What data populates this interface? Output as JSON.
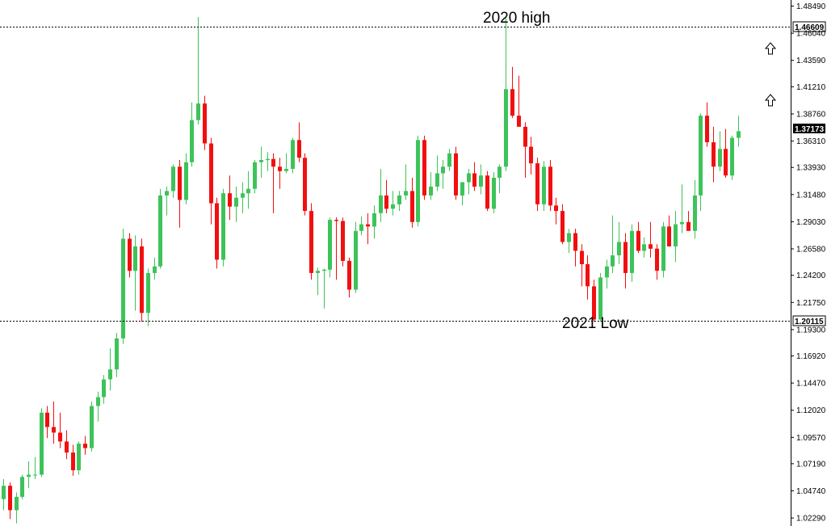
{
  "chart_data": {
    "type": "candlestick",
    "title": "",
    "xlabel": "",
    "ylabel": "",
    "ylim": [
      1.0157,
      1.4904
    ],
    "grid": false,
    "legend": "none",
    "colors": {
      "up": "#3dc35a",
      "down": "#f20f0f",
      "axis": "#000000",
      "level_line": "#000000"
    },
    "y_ticks": [
      "1.48490",
      "1.46040",
      "1.43590",
      "1.41210",
      "1.38760",
      "1.36310",
      "1.33930",
      "1.31480",
      "1.29030",
      "1.26580",
      "1.24200",
      "1.21750",
      "1.19300",
      "1.16920",
      "1.14470",
      "1.12020",
      "1.09570",
      "1.07190",
      "1.04740",
      "1.02290"
    ],
    "y_tick_values": [
      1.4849,
      1.4604,
      1.4359,
      1.4121,
      1.3876,
      1.3631,
      1.3393,
      1.3148,
      1.2903,
      1.2658,
      1.242,
      1.2175,
      1.193,
      1.1692,
      1.1447,
      1.1202,
      1.0957,
      1.0719,
      1.0474,
      1.0229
    ],
    "levels": [
      {
        "value": 1.46609,
        "label": "1.46609",
        "annotation": "2020 high"
      },
      {
        "value": 1.20115,
        "label": "1.20115",
        "annotation": "2021 Low"
      }
    ],
    "current_price": {
      "value": 1.37173,
      "label": "1.37173"
    },
    "arrow_icons": [
      "up-arrow-icon",
      "up-arrow-icon"
    ],
    "candles": [
      [
        1.04,
        1.058,
        1.03,
        1.052
      ],
      [
        1.052,
        1.055,
        1.022,
        1.03
      ],
      [
        1.03,
        1.046,
        1.018,
        1.042
      ],
      [
        1.042,
        1.062,
        1.04,
        1.06
      ],
      [
        1.06,
        1.074,
        1.05,
        1.062
      ],
      [
        1.062,
        1.078,
        1.058,
        1.062
      ],
      [
        1.062,
        1.122,
        1.06,
        1.118
      ],
      [
        1.118,
        1.124,
        1.095,
        1.105
      ],
      [
        1.105,
        1.128,
        1.09,
        1.1
      ],
      [
        1.1,
        1.118,
        1.086,
        1.092
      ],
      [
        1.092,
        1.102,
        1.076,
        1.082
      ],
      [
        1.082,
        1.089,
        1.061,
        1.066
      ],
      [
        1.066,
        1.092,
        1.062,
        1.09
      ],
      [
        1.09,
        1.097,
        1.08,
        1.086
      ],
      [
        1.086,
        1.128,
        1.083,
        1.124
      ],
      [
        1.124,
        1.137,
        1.11,
        1.132
      ],
      [
        1.132,
        1.152,
        1.126,
        1.148
      ],
      [
        1.148,
        1.176,
        1.138,
        1.157
      ],
      [
        1.157,
        1.19,
        1.15,
        1.185
      ],
      [
        1.185,
        1.284,
        1.18,
        1.275
      ],
      [
        1.275,
        1.28,
        1.24,
        1.246
      ],
      [
        1.246,
        1.278,
        1.21,
        1.268
      ],
      [
        1.268,
        1.275,
        1.2,
        1.208
      ],
      [
        1.208,
        1.248,
        1.196,
        1.244
      ],
      [
        1.244,
        1.258,
        1.238,
        1.25
      ],
      [
        1.25,
        1.32,
        1.248,
        1.314
      ],
      [
        1.314,
        1.322,
        1.296,
        1.318
      ],
      [
        1.318,
        1.342,
        1.312,
        1.34
      ],
      [
        1.34,
        1.346,
        1.285,
        1.31
      ],
      [
        1.31,
        1.352,
        1.306,
        1.344
      ],
      [
        1.344,
        1.398,
        1.34,
        1.382
      ],
      [
        1.382,
        1.475,
        1.378,
        1.397
      ],
      [
        1.397,
        1.404,
        1.355,
        1.361
      ],
      [
        1.361,
        1.366,
        1.288,
        1.307
      ],
      [
        1.307,
        1.312,
        1.248,
        1.256
      ],
      [
        1.256,
        1.32,
        1.25,
        1.316
      ],
      [
        1.316,
        1.332,
        1.292,
        1.304
      ],
      [
        1.304,
        1.322,
        1.29,
        1.312
      ],
      [
        1.312,
        1.326,
        1.298,
        1.316
      ],
      [
        1.316,
        1.336,
        1.302,
        1.32
      ],
      [
        1.32,
        1.346,
        1.316,
        1.344
      ],
      [
        1.344,
        1.358,
        1.33,
        1.346
      ],
      [
        1.346,
        1.353,
        1.336,
        1.347
      ],
      [
        1.347,
        1.352,
        1.298,
        1.34
      ],
      [
        1.34,
        1.348,
        1.32,
        1.336
      ],
      [
        1.336,
        1.352,
        1.334,
        1.338
      ],
      [
        1.338,
        1.366,
        1.334,
        1.364
      ],
      [
        1.364,
        1.38,
        1.344,
        1.348
      ],
      [
        1.348,
        1.352,
        1.296,
        1.3
      ],
      [
        1.3,
        1.307,
        1.238,
        1.244
      ],
      [
        1.244,
        1.249,
        1.224,
        1.246
      ],
      [
        1.246,
        1.248,
        1.212,
        1.247
      ],
      [
        1.247,
        1.294,
        1.24,
        1.292
      ],
      [
        1.292,
        1.294,
        1.238,
        1.291
      ],
      [
        1.291,
        1.294,
        1.25,
        1.255
      ],
      [
        1.255,
        1.258,
        1.222,
        1.229
      ],
      [
        1.229,
        1.29,
        1.226,
        1.282
      ],
      [
        1.282,
        1.295,
        1.278,
        1.288
      ],
      [
        1.288,
        1.298,
        1.27,
        1.286
      ],
      [
        1.286,
        1.305,
        1.275,
        1.298
      ],
      [
        1.298,
        1.338,
        1.29,
        1.314
      ],
      [
        1.314,
        1.328,
        1.298,
        1.302
      ],
      [
        1.302,
        1.318,
        1.296,
        1.306
      ],
      [
        1.306,
        1.318,
        1.3,
        1.314
      ],
      [
        1.314,
        1.342,
        1.31,
        1.318
      ],
      [
        1.318,
        1.33,
        1.285,
        1.29
      ],
      [
        1.29,
        1.368,
        1.286,
        1.364
      ],
      [
        1.364,
        1.368,
        1.31,
        1.314
      ],
      [
        1.314,
        1.335,
        1.31,
        1.322
      ],
      [
        1.322,
        1.35,
        1.318,
        1.334
      ],
      [
        1.334,
        1.346,
        1.32,
        1.34
      ],
      [
        1.34,
        1.356,
        1.336,
        1.352
      ],
      [
        1.352,
        1.358,
        1.31,
        1.314
      ],
      [
        1.314,
        1.326,
        1.305,
        1.326
      ],
      [
        1.326,
        1.338,
        1.315,
        1.334
      ],
      [
        1.334,
        1.344,
        1.318,
        1.322
      ],
      [
        1.322,
        1.342,
        1.315,
        1.332
      ],
      [
        1.332,
        1.336,
        1.3,
        1.302
      ],
      [
        1.302,
        1.335,
        1.298,
        1.33
      ],
      [
        1.33,
        1.342,
        1.316,
        1.34
      ],
      [
        1.34,
        1.475,
        1.336,
        1.41
      ],
      [
        1.41,
        1.43,
        1.384,
        1.386
      ],
      [
        1.386,
        1.422,
        1.38,
        1.376
      ],
      [
        1.376,
        1.38,
        1.33,
        1.358
      ],
      [
        1.358,
        1.367,
        1.333,
        1.343
      ],
      [
        1.343,
        1.348,
        1.3,
        1.306
      ],
      [
        1.306,
        1.345,
        1.3,
        1.34
      ],
      [
        1.34,
        1.346,
        1.3,
        1.305
      ],
      [
        1.305,
        1.312,
        1.288,
        1.3
      ],
      [
        1.3,
        1.306,
        1.27,
        1.272
      ],
      [
        1.272,
        1.284,
        1.262,
        1.28
      ],
      [
        1.28,
        1.284,
        1.25,
        1.264
      ],
      [
        1.264,
        1.27,
        1.232,
        1.252
      ],
      [
        1.252,
        1.26,
        1.22,
        1.232
      ],
      [
        1.232,
        1.238,
        1.2,
        1.202
      ],
      [
        1.202,
        1.244,
        1.2,
        1.24
      ],
      [
        1.24,
        1.256,
        1.23,
        1.25
      ],
      [
        1.25,
        1.296,
        1.244,
        1.26
      ],
      [
        1.26,
        1.29,
        1.252,
        1.272
      ],
      [
        1.272,
        1.28,
        1.23,
        1.244
      ],
      [
        1.244,
        1.288,
        1.236,
        1.282
      ],
      [
        1.282,
        1.29,
        1.262,
        1.264
      ],
      [
        1.264,
        1.276,
        1.258,
        1.27
      ],
      [
        1.27,
        1.29,
        1.258,
        1.266
      ],
      [
        1.266,
        1.27,
        1.238,
        1.246
      ],
      [
        1.246,
        1.29,
        1.24,
        1.286
      ],
      [
        1.286,
        1.296,
        1.268,
        1.268
      ],
      [
        1.268,
        1.3,
        1.254,
        1.288
      ],
      [
        1.288,
        1.324,
        1.28,
        1.29
      ],
      [
        1.29,
        1.3,
        1.282,
        1.282
      ],
      [
        1.282,
        1.328,
        1.275,
        1.314
      ],
      [
        1.314,
        1.388,
        1.3,
        1.386
      ],
      [
        1.386,
        1.398,
        1.358,
        1.362
      ],
      [
        1.362,
        1.376,
        1.326,
        1.34
      ],
      [
        1.34,
        1.372,
        1.336,
        1.356
      ],
      [
        1.356,
        1.374,
        1.33,
        1.332
      ],
      [
        1.332,
        1.368,
        1.328,
        1.366
      ],
      [
        1.366,
        1.386,
        1.358,
        1.372
      ]
    ]
  }
}
